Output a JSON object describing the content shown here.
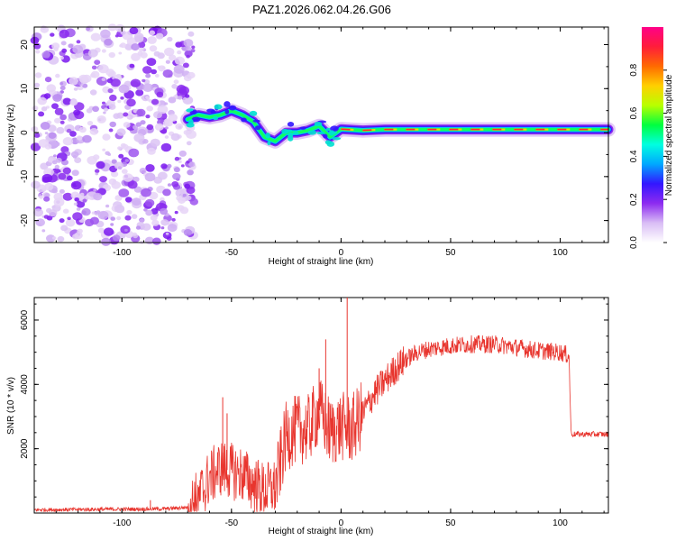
{
  "title": "PAZ1.2026.062.04.26.G06",
  "chart_data": [
    {
      "type": "heatmap",
      "name": "spectrogram",
      "xlabel": "Height of straight line (km)",
      "ylabel": "Frequency (Hz)",
      "xlim": [
        -140,
        122
      ],
      "ylim": [
        -25,
        24
      ],
      "xticks": [
        -100,
        -50,
        0,
        50,
        100
      ],
      "yticks": [
        -20,
        -10,
        0,
        10,
        20
      ],
      "colorbar": {
        "label": "Normalized spectral amplitude",
        "range": [
          0,
          1
        ],
        "ticks": [
          "0.0",
          "0.2",
          "0.4",
          "0.6",
          "0.8"
        ],
        "colors": [
          "#ffffff",
          "#d9bdf5",
          "#8d2bf0",
          "#3316ff",
          "#00a8ff",
          "#00ffe0",
          "#00ff40",
          "#b8ff00",
          "#ffd000",
          "#ff6a00",
          "#ff1d3a",
          "#ff0088"
        ]
      },
      "signal_track": [
        {
          "x": -70,
          "f": 3
        },
        {
          "x": -65,
          "f": 4
        },
        {
          "x": -60,
          "f": 3.5
        },
        {
          "x": -55,
          "f": 4
        },
        {
          "x": -50,
          "f": 5
        },
        {
          "x": -45,
          "f": 4
        },
        {
          "x": -40,
          "f": 2.5
        },
        {
          "x": -35,
          "f": -1
        },
        {
          "x": -30,
          "f": -2
        },
        {
          "x": -25,
          "f": 0
        },
        {
          "x": -20,
          "f": 0
        },
        {
          "x": -15,
          "f": 0.5
        },
        {
          "x": -10,
          "f": 1.5
        },
        {
          "x": -5,
          "f": -1
        },
        {
          "x": 0,
          "f": 0.8
        },
        {
          "x": 10,
          "f": 0.5
        },
        {
          "x": 20,
          "f": 0.7
        },
        {
          "x": 40,
          "f": 0.7
        },
        {
          "x": 60,
          "f": 0.7
        },
        {
          "x": 80,
          "f": 0.7
        },
        {
          "x": 100,
          "f": 0.7
        },
        {
          "x": 122,
          "f": 0.7
        }
      ],
      "noise_region_end_km": -70
    },
    {
      "type": "line",
      "name": "snr",
      "xlabel": "Height of straight line (km)",
      "ylabel": "SNR (10 * v/v)",
      "xlim": [
        -140,
        122
      ],
      "ylim": [
        0,
        6700
      ],
      "xticks": [
        -100,
        -50,
        0,
        50,
        100
      ],
      "yticks": [
        2000,
        4000,
        6000
      ],
      "color": "#e8352e",
      "series": [
        {
          "x": -140,
          "y": 100
        },
        {
          "x": -120,
          "y": 110
        },
        {
          "x": -100,
          "y": 120
        },
        {
          "x": -80,
          "y": 130
        },
        {
          "x": -70,
          "y": 180
        },
        {
          "x": -65,
          "y": 500
        },
        {
          "x": -60,
          "y": 1100
        },
        {
          "x": -55,
          "y": 1400
        },
        {
          "x": -50,
          "y": 1300
        },
        {
          "x": -45,
          "y": 1200
        },
        {
          "x": -40,
          "y": 900
        },
        {
          "x": -35,
          "y": 700
        },
        {
          "x": -30,
          "y": 800
        },
        {
          "x": -25,
          "y": 2400
        },
        {
          "x": -20,
          "y": 2600
        },
        {
          "x": -15,
          "y": 2600
        },
        {
          "x": -10,
          "y": 3200
        },
        {
          "x": -5,
          "y": 2500
        },
        {
          "x": 0,
          "y": 2700
        },
        {
          "x": 5,
          "y": 2600
        },
        {
          "x": 10,
          "y": 3100
        },
        {
          "x": 15,
          "y": 3700
        },
        {
          "x": 20,
          "y": 4100
        },
        {
          "x": 25,
          "y": 4500
        },
        {
          "x": 30,
          "y": 4800
        },
        {
          "x": 35,
          "y": 5000
        },
        {
          "x": 40,
          "y": 5100
        },
        {
          "x": 50,
          "y": 5200
        },
        {
          "x": 60,
          "y": 5250
        },
        {
          "x": 70,
          "y": 5250
        },
        {
          "x": 80,
          "y": 5150
        },
        {
          "x": 90,
          "y": 5050
        },
        {
          "x": 100,
          "y": 5000
        },
        {
          "x": 104,
          "y": 4900
        },
        {
          "x": 105,
          "y": 2450
        },
        {
          "x": 110,
          "y": 2450
        },
        {
          "x": 122,
          "y": 2450
        }
      ],
      "spikes": [
        {
          "x": 2.8,
          "y": 6700
        },
        {
          "x": -7,
          "y": 5400
        },
        {
          "x": -54,
          "y": 3600
        },
        {
          "x": -52,
          "y": 3100
        },
        {
          "x": -10,
          "y": 4500
        },
        {
          "x": -87,
          "y": 400
        }
      ]
    }
  ]
}
